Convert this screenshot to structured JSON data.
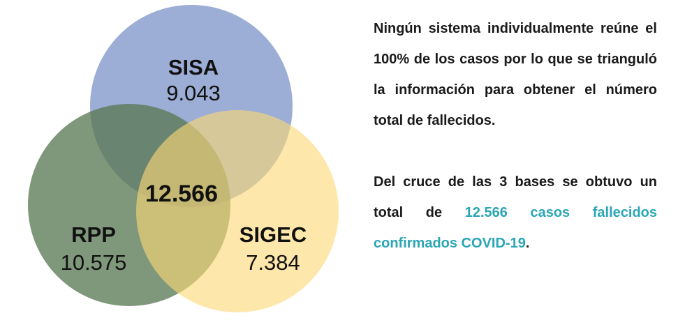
{
  "venn": {
    "sets": [
      {
        "key": "sisa",
        "name": "SISA",
        "value": "9.043",
        "color": "#8097c9"
      },
      {
        "key": "rpp",
        "name": "RPP",
        "value": "10.575",
        "color": "#5b7a55"
      },
      {
        "key": "sigec",
        "name": "SIGEC",
        "value": "7.384",
        "color": "#fbd976"
      }
    ],
    "center_value": "12.566"
  },
  "text": {
    "paragraph_1": "Ningún sistema individualmente reúne el 100% de los casos por lo que se trianguló la información para obtener el número total de fallecidos.",
    "paragraph_2_prefix": "Del cruce de las 3 bases se obtuvo un total de ",
    "paragraph_2_highlight": "12.566 casos fallecidos confirmados COVID-19",
    "paragraph_2_suffix": "."
  },
  "colors": {
    "highlight": "#2aa6b5",
    "text": "#1a1a1a"
  }
}
